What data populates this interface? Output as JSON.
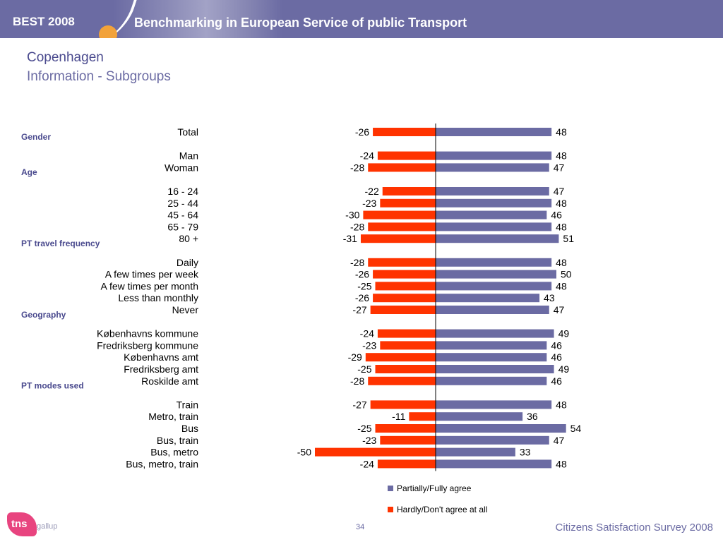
{
  "header": {
    "brand": "BEST 2008",
    "banner": "Benchmarking in European Service of public Transport"
  },
  "page": {
    "title": "Copenhagen",
    "subtitle": "Information - Subgroups"
  },
  "footer": {
    "page_number": "34",
    "survey": "Citizens Satisfaction Survey 2008",
    "logo_tns": "tns",
    "logo_gallup": "gallup"
  },
  "colors": {
    "agree": "#6b6ba3",
    "disagree": "#ff3300",
    "brand": "#6b6ba3",
    "accent": "#f2a23a"
  },
  "chart_data": {
    "type": "bar",
    "orientation": "horizontal-diverging",
    "xlim": [
      -50,
      54
    ],
    "series": [
      {
        "name": "Partially/Fully agree",
        "key": "agree",
        "color": "#6b6ba3"
      },
      {
        "name": "Hardly/Don't agree at all",
        "key": "disagree",
        "color": "#ff3300"
      }
    ],
    "legend_position": "bottom",
    "rows": [
      {
        "label": "Total",
        "agree": 48,
        "disagree": -26
      },
      {
        "group": "Gender"
      },
      {
        "label": "Man",
        "agree": 48,
        "disagree": -24
      },
      {
        "label": "Woman",
        "agree": 47,
        "disagree": -28
      },
      {
        "group": "Age"
      },
      {
        "label": "16 - 24",
        "agree": 47,
        "disagree": -22
      },
      {
        "label": "25 - 44",
        "agree": 48,
        "disagree": -23
      },
      {
        "label": "45 - 64",
        "agree": 46,
        "disagree": -30
      },
      {
        "label": "65 - 79",
        "agree": 48,
        "disagree": -28
      },
      {
        "label": "80 +",
        "agree": 51,
        "disagree": -31
      },
      {
        "group": "PT travel frequency"
      },
      {
        "label": "Daily",
        "agree": 48,
        "disagree": -28
      },
      {
        "label": "A few times per week",
        "agree": 50,
        "disagree": -26
      },
      {
        "label": "A few times per month",
        "agree": 48,
        "disagree": -25
      },
      {
        "label": "Less than monthly",
        "agree": 43,
        "disagree": -26
      },
      {
        "label": "Never",
        "agree": 47,
        "disagree": -27
      },
      {
        "group": "Geography"
      },
      {
        "label": "Københavns kommune",
        "agree": 49,
        "disagree": -24
      },
      {
        "label": "Fredriksberg kommune",
        "agree": 46,
        "disagree": -23
      },
      {
        "label": "Københavns amt",
        "agree": 46,
        "disagree": -29
      },
      {
        "label": "Fredriksberg amt",
        "agree": 49,
        "disagree": -25
      },
      {
        "label": "Roskilde amt",
        "agree": 46,
        "disagree": -28
      },
      {
        "group": "PT modes used"
      },
      {
        "label": "Train",
        "agree": 48,
        "disagree": -27
      },
      {
        "label": "Metro, train",
        "agree": 36,
        "disagree": -11
      },
      {
        "label": "Bus",
        "agree": 54,
        "disagree": -25
      },
      {
        "label": "Bus, train",
        "agree": 47,
        "disagree": -23
      },
      {
        "label": "Bus, metro",
        "agree": 33,
        "disagree": -50
      },
      {
        "label": "Bus, metro, train",
        "agree": 48,
        "disagree": -24
      }
    ]
  }
}
